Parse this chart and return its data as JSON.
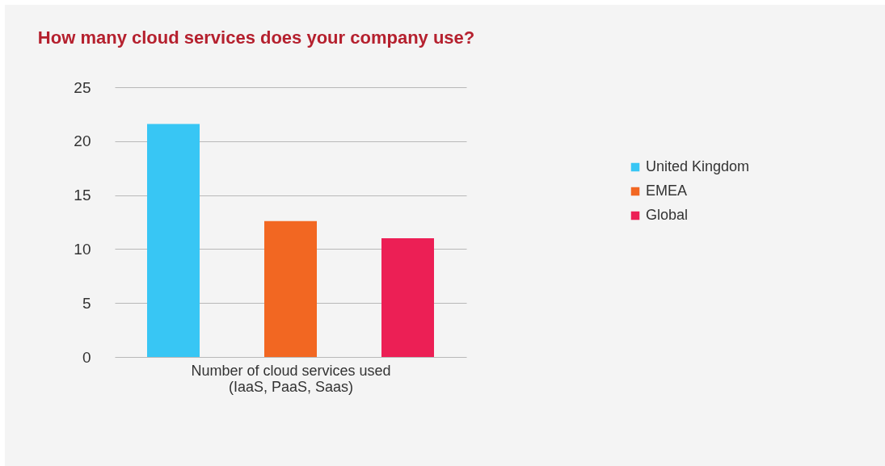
{
  "chart_data": {
    "type": "bar",
    "title": "How many cloud services does your company use?",
    "xlabel": "Number of cloud services used\n(IaaS, PaaS, Saas)",
    "categories": [
      null
    ],
    "series": [
      {
        "name": "United Kingdom",
        "color": "#38c6f4",
        "values": [
          21.6
        ]
      },
      {
        "name": "EMEA",
        "color": "#f26722",
        "values": [
          12.6
        ]
      },
      {
        "name": "Global",
        "color": "#ec1f55",
        "values": [
          11.0
        ]
      }
    ],
    "ylim": [
      0,
      25
    ],
    "yticks": [
      0,
      5,
      10,
      15,
      20,
      25
    ],
    "grid": "y",
    "legend": "right"
  }
}
